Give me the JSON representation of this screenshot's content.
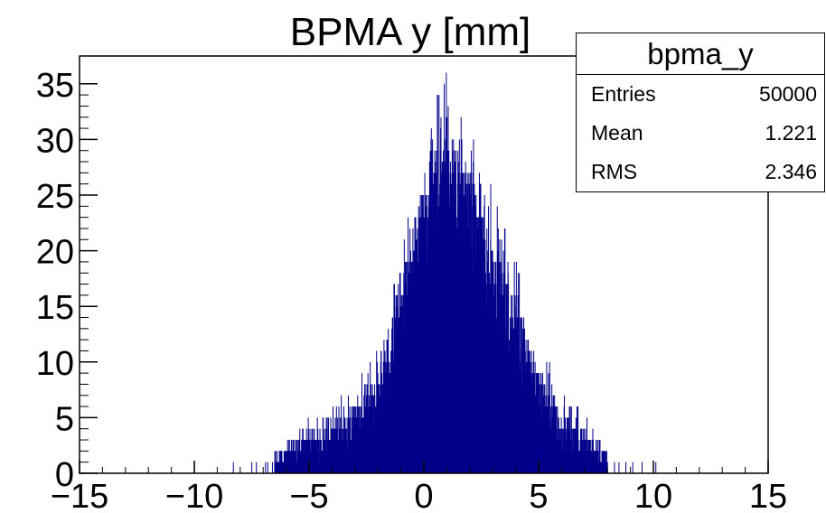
{
  "chart_data": {
    "type": "histogram",
    "title": "BPMA y [mm]",
    "xlabel": "",
    "ylabel": "",
    "xlim": [
      -15,
      15
    ],
    "ylim": [
      0,
      37.5
    ],
    "x_ticks": [
      -15,
      -10,
      -5,
      0,
      5,
      10,
      15
    ],
    "y_ticks": [
      0,
      5,
      10,
      15,
      20,
      25,
      30,
      35
    ],
    "x_tick_labels": [
      "−15",
      "−10",
      "−5",
      "0",
      "5",
      "10",
      "15"
    ],
    "y_tick_labels": [
      "0",
      "5",
      "10",
      "15",
      "20",
      "25",
      "30",
      "35"
    ],
    "binning": {
      "x_start": -15,
      "x_end": 15,
      "bins": 4000
    },
    "envelope": {
      "description_units": "data units",
      "x": [
        -6.5,
        -5,
        -4,
        -3,
        -2,
        -1,
        0,
        0.5,
        1,
        1.5,
        2,
        3,
        4,
        5,
        6,
        7,
        8
      ],
      "y_max": [
        2,
        5,
        6,
        8,
        11,
        20,
        28,
        33,
        36,
        34,
        31,
        25,
        19,
        12,
        7,
        5,
        2
      ],
      "y_min": [
        0,
        0,
        0,
        0,
        1,
        8,
        15,
        16,
        18,
        17,
        16,
        10,
        5,
        2,
        0,
        0,
        0
      ]
    },
    "sparse_spikes_x": [
      -10,
      -8.3,
      -7.5,
      -7.3,
      -6.9,
      -6.8,
      -6.6,
      8.3,
      8.5,
      8.8,
      9.1,
      9.5,
      10.1
    ],
    "series": [
      {
        "color": "#00008b"
      }
    ],
    "grid": false,
    "legend": "none",
    "stats_box": {
      "name": "bpma_y",
      "rows": [
        {
          "label": "Entries",
          "value": "50000"
        },
        {
          "label": "Mean",
          "value": "1.221"
        },
        {
          "label": "RMS",
          "value": "2.346"
        }
      ]
    }
  }
}
